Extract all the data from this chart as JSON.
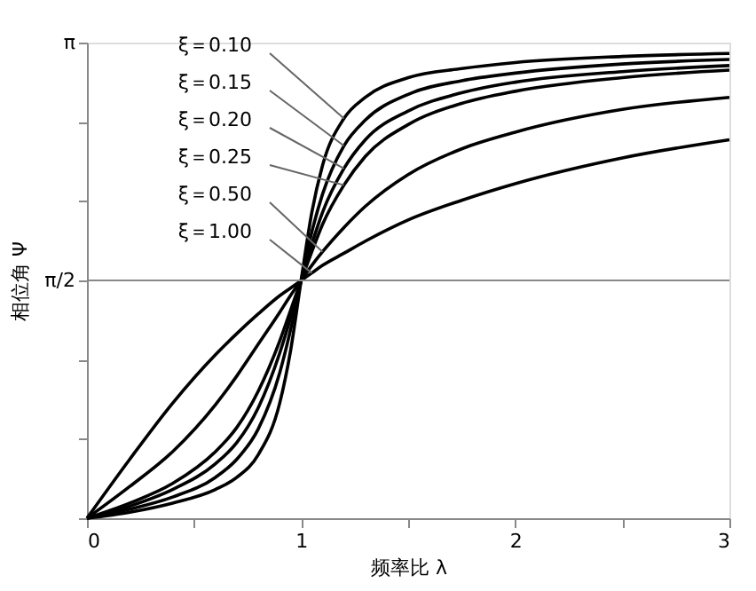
{
  "chart_data": {
    "type": "line",
    "xlabel": "频率比 λ",
    "ylabel": "相位角 Ψ",
    "x": [
      0,
      0.2,
      0.4,
      0.6,
      0.7,
      0.8,
      0.9,
      0.95,
      1,
      1.05,
      1.1,
      1.2,
      1.3,
      1.5,
      1.75,
      2,
      2.5,
      3
    ],
    "series": [
      {
        "color": "#000000",
        "values": [
          0,
          0.04,
          0.1,
          0.19,
          0.27,
          0.42,
          0.76,
          1.1,
          1.57,
          2.02,
          2.33,
          2.64,
          2.78,
          2.91,
          2.97,
          3.01,
          3.05,
          3.07
        ]
      },
      {
        "color": "#000000",
        "values": [
          0,
          0.06,
          0.14,
          0.27,
          0.39,
          0.59,
          0.96,
          1.24,
          1.57,
          1.89,
          2.14,
          2.46,
          2.63,
          2.8,
          2.89,
          2.94,
          3.0,
          3.03
        ]
      },
      {
        "color": "#000000",
        "values": [
          0,
          0.08,
          0.19,
          0.36,
          0.5,
          0.73,
          1.09,
          1.32,
          1.57,
          1.81,
          2.02,
          2.31,
          2.5,
          2.69,
          2.81,
          2.88,
          2.95,
          2.99
        ]
      },
      {
        "color": "#000000",
        "values": [
          0,
          0.1,
          0.23,
          0.44,
          0.6,
          0.84,
          1.17,
          1.37,
          1.57,
          1.76,
          1.94,
          2.2,
          2.39,
          2.6,
          2.74,
          2.82,
          2.91,
          2.96
        ]
      },
      {
        "color": "#000000",
        "values": [
          0,
          0.21,
          0.44,
          0.75,
          0.94,
          1.15,
          1.36,
          1.47,
          1.57,
          1.67,
          1.76,
          1.92,
          2.06,
          2.27,
          2.44,
          2.55,
          2.7,
          2.78
        ]
      },
      {
        "color": "#000000",
        "values": [
          0,
          0.39,
          0.76,
          1.08,
          1.22,
          1.35,
          1.47,
          1.52,
          1.57,
          1.62,
          1.67,
          1.75,
          1.83,
          1.97,
          2.1,
          2.21,
          2.38,
          2.5
        ]
      }
    ],
    "annotations": [
      {
        "text": "ξ＝0.10",
        "x": 1.2,
        "y": 2.64
      },
      {
        "text": "ξ＝0.15",
        "x": 1.2,
        "y": 2.46
      },
      {
        "text": "ξ＝0.20",
        "x": 1.2,
        "y": 2.31
      },
      {
        "text": "ξ＝0.25",
        "x": 1.2,
        "y": 2.2
      },
      {
        "text": "ξ＝0.50",
        "x": 1.1,
        "y": 1.76
      },
      {
        "text": "ξ＝1.00",
        "x": 1.05,
        "y": 1.62
      }
    ],
    "xlim": [
      0,
      3
    ],
    "ylim": [
      0,
      3.1416
    ],
    "xticks": [
      0,
      {
        "value": 0.5,
        "label": null
      },
      1,
      {
        "value": 1.5,
        "label": null
      },
      2,
      {
        "value": 2.5,
        "label": null
      },
      3
    ],
    "yticks": [
      {
        "value": 0,
        "label": null
      },
      {
        "value": 0.5236,
        "label": null
      },
      {
        "value": 1.0472,
        "label": null
      },
      {
        "value": 1.5708,
        "label": "π/2"
      },
      {
        "value": 2.0944,
        "label": null
      },
      {
        "value": 2.618,
        "label": null
      },
      {
        "value": 3.1416,
        "label": "π"
      }
    ],
    "ref_lines": [
      {
        "axis": "y",
        "value": 1.5708,
        "color": "#888888"
      }
    ],
    "grid": false,
    "legend": false,
    "marker": "none",
    "line_style": "solid"
  }
}
